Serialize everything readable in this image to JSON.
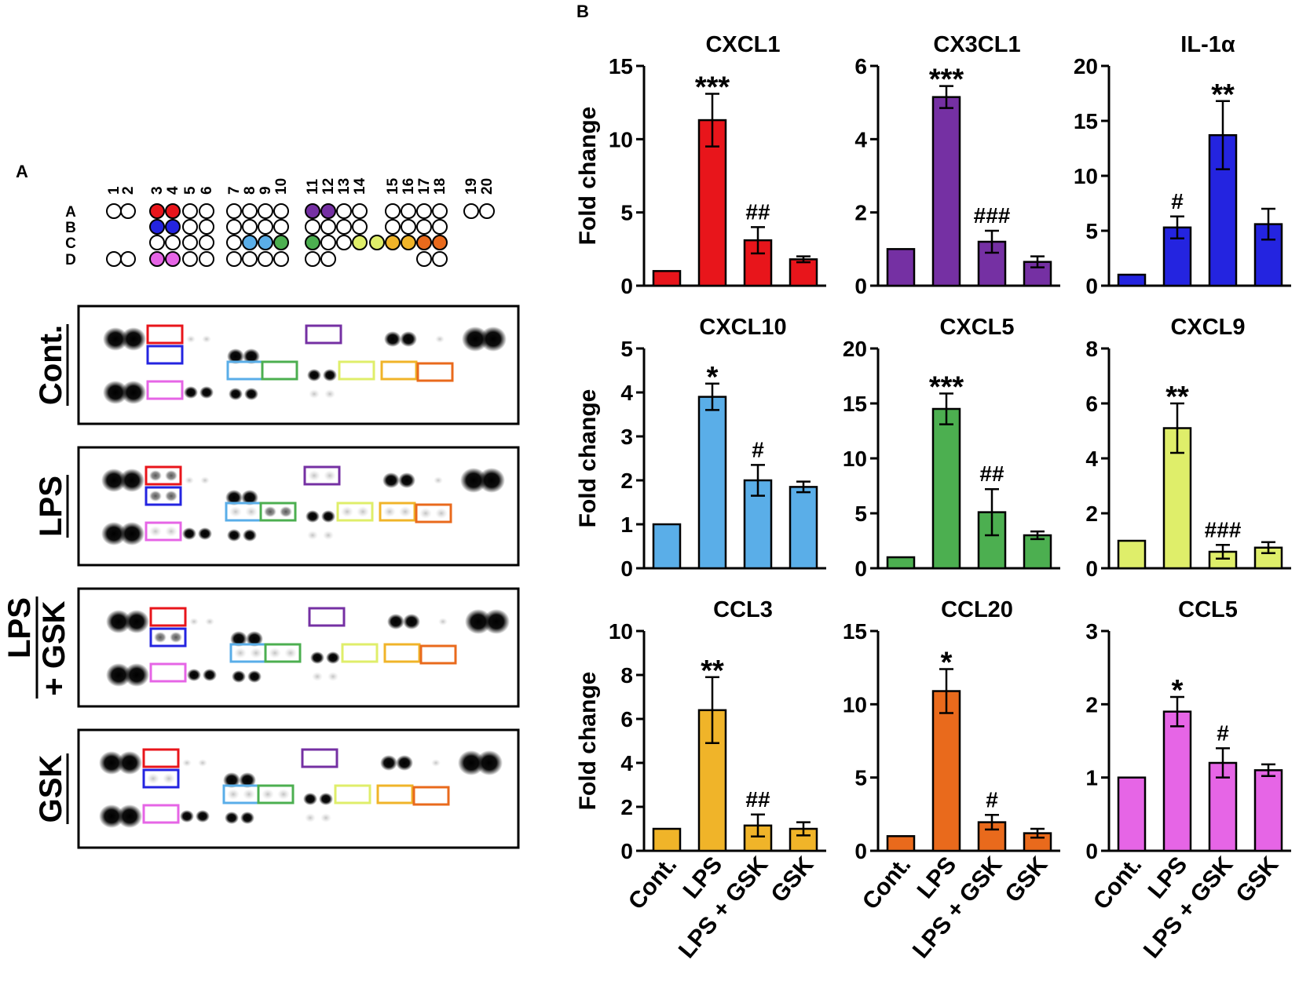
{
  "panel_labels": {
    "a": "A",
    "b": "B"
  },
  "array_map": {
    "column_numbers": [
      "1",
      "2",
      "3",
      "4",
      "5",
      "6",
      "7",
      "8",
      "9",
      "10",
      "11",
      "12",
      "13",
      "14",
      "15",
      "16",
      "17",
      "18",
      "19",
      "20"
    ],
    "row_letters": [
      "A",
      "B",
      "C",
      "D"
    ],
    "colors": {
      "CXCL1": "#e8151b",
      "CX3CL1": "#7530a3",
      "IL-1α": "#2424e0",
      "CXCL10": "#5aaee8",
      "CXCL5": "#4caf50",
      "CXCL9": "#dfee6a",
      "CCL3": "#f0b429",
      "CCL20": "#e96a1c",
      "CCL5": "#e665e6"
    }
  },
  "blots": [
    {
      "label": "Cont."
    },
    {
      "label": "LPS"
    },
    {
      "label_line1": "LPS",
      "label_line2": "+ GSK"
    },
    {
      "label": "GSK"
    }
  ],
  "shared": {
    "ylabel": "Fold change",
    "categories": [
      "Cont.",
      "LPS",
      "LPS + GSK",
      "GSK"
    ]
  },
  "chart_data": [
    {
      "type": "bar",
      "title": "CXCL1",
      "color": "#e8151b",
      "ylim": [
        0,
        15
      ],
      "yticks": [
        "0",
        "5",
        "10",
        "15"
      ],
      "categories": [
        "Cont.",
        "LPS",
        "LPS + GSK",
        "GSK"
      ],
      "values": [
        1,
        11.3,
        3.1,
        1.8
      ],
      "errors": [
        0,
        1.8,
        0.9,
        0.2
      ],
      "annotations": [
        "",
        "***",
        "##",
        ""
      ]
    },
    {
      "type": "bar",
      "title": "CX3CL1",
      "color": "#7530a3",
      "ylim": [
        0,
        6
      ],
      "yticks": [
        "0",
        "2",
        "4",
        "6"
      ],
      "categories": [
        "Cont.",
        "LPS",
        "LPS + GSK",
        "GSK"
      ],
      "values": [
        1,
        5.15,
        1.2,
        0.65
      ],
      "errors": [
        0,
        0.3,
        0.3,
        0.15
      ],
      "annotations": [
        "",
        "***",
        "###",
        ""
      ]
    },
    {
      "type": "bar",
      "title": "IL-1α",
      "color": "#2424e0",
      "ylim": [
        0,
        20
      ],
      "yticks": [
        "0",
        "5",
        "10",
        "15",
        "20"
      ],
      "categories": [
        "Cont.",
        "LPS",
        "LPS + GSK",
        "GSK"
      ],
      "values": [
        1,
        5.3,
        13.7,
        5.6
      ],
      "errors": [
        0,
        1.0,
        3.1,
        1.4
      ],
      "annotations": [
        "",
        "#",
        "**",
        ""
      ]
    },
    {
      "type": "bar",
      "title": "CXCL10",
      "color": "#5aaee8",
      "ylim": [
        0,
        5
      ],
      "yticks": [
        "0",
        "1",
        "2",
        "3",
        "4",
        "5"
      ],
      "categories": [
        "Cont.",
        "LPS",
        "LPS + GSK",
        "GSK"
      ],
      "values": [
        1,
        3.9,
        2.0,
        1.85
      ],
      "errors": [
        0,
        0.3,
        0.35,
        0.12
      ],
      "annotations": [
        "",
        "*",
        "#",
        ""
      ]
    },
    {
      "type": "bar",
      "title": "CXCL5",
      "color": "#4caf50",
      "ylim": [
        0,
        20
      ],
      "yticks": [
        "0",
        "5",
        "10",
        "15",
        "20"
      ],
      "categories": [
        "Cont.",
        "LPS",
        "LPS + GSK",
        "GSK"
      ],
      "values": [
        1,
        14.5,
        5.1,
        3.0
      ],
      "errors": [
        0,
        1.4,
        2.1,
        0.35
      ],
      "annotations": [
        "",
        "***",
        "##",
        ""
      ]
    },
    {
      "type": "bar",
      "title": "CXCL9",
      "color": "#dfee6a",
      "ylim": [
        0,
        8
      ],
      "yticks": [
        "0",
        "2",
        "4",
        "6",
        "8"
      ],
      "categories": [
        "Cont.",
        "LPS",
        "LPS + GSK",
        "GSK"
      ],
      "values": [
        1,
        5.1,
        0.6,
        0.75
      ],
      "errors": [
        0,
        0.9,
        0.25,
        0.2
      ],
      "annotations": [
        "",
        "**",
        "###",
        ""
      ]
    },
    {
      "type": "bar",
      "title": "CCL3",
      "color": "#f0b429",
      "ylim": [
        0,
        10
      ],
      "yticks": [
        "0",
        "2",
        "4",
        "6",
        "8",
        "10"
      ],
      "categories": [
        "Cont.",
        "LPS",
        "LPS + GSK",
        "GSK"
      ],
      "values": [
        1,
        6.4,
        1.15,
        1.0
      ],
      "errors": [
        0,
        1.5,
        0.5,
        0.3
      ],
      "annotations": [
        "",
        "**",
        "##",
        ""
      ]
    },
    {
      "type": "bar",
      "title": "CCL20",
      "color": "#e96a1c",
      "ylim": [
        0,
        15
      ],
      "yticks": [
        "0",
        "5",
        "10",
        "15"
      ],
      "categories": [
        "Cont.",
        "LPS",
        "LPS + GSK",
        "GSK"
      ],
      "values": [
        1,
        10.9,
        1.95,
        1.2
      ],
      "errors": [
        0,
        1.5,
        0.5,
        0.3
      ],
      "annotations": [
        "",
        "*",
        "#",
        ""
      ]
    },
    {
      "type": "bar",
      "title": "CCL5",
      "color": "#e665e6",
      "ylim": [
        0,
        3
      ],
      "yticks": [
        "0",
        "1",
        "2",
        "3"
      ],
      "categories": [
        "Cont.",
        "LPS",
        "LPS + GSK",
        "GSK"
      ],
      "values": [
        1,
        1.9,
        1.2,
        1.1
      ],
      "errors": [
        0,
        0.2,
        0.2,
        0.08
      ],
      "annotations": [
        "",
        "*",
        "#",
        ""
      ]
    }
  ]
}
